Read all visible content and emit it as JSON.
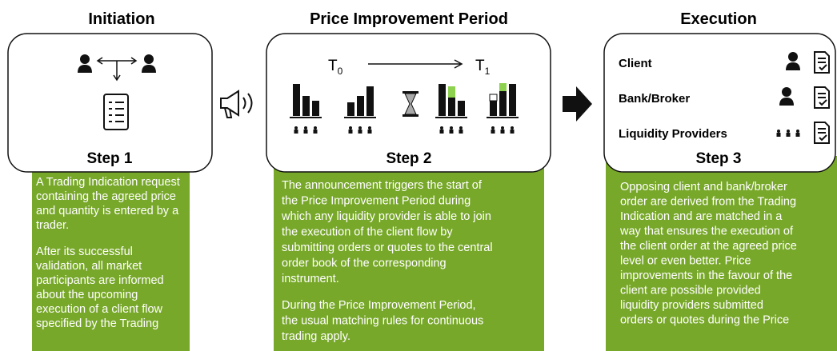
{
  "columns": [
    {
      "heading": "Initiation",
      "step": "Step 1",
      "paragraphs": [
        [
          "A Trading Indication request",
          "containing the agreed price",
          "and quantity is entered by a",
          "trader."
        ],
        [
          "After its successful",
          "validation, all market",
          "participants are informed",
          "about the upcoming",
          "execution of a client flow",
          "specified by the Trading"
        ]
      ]
    },
    {
      "heading": "Price Improvement Period",
      "step": "Step 2",
      "t_start": "T",
      "t_start_sub": "0",
      "t_end": "T",
      "t_end_sub": "1",
      "paragraphs": [
        [
          "The announcement triggers the start of",
          "the Price Improvement Period during",
          "which any liquidity provider is able to join",
          "the execution of the client flow by",
          "submitting orders or quotes to the central",
          "order book of the corresponding",
          "instrument."
        ],
        [
          "During the Price Improvement Period,",
          "the usual matching rules for continuous",
          "trading apply."
        ]
      ]
    },
    {
      "heading": "Execution",
      "step": "Step 3",
      "roles": [
        "Client",
        "Bank/Broker",
        "Liquidity Providers"
      ],
      "paragraphs": [
        [
          "Opposing client and bank/broker",
          "order are derived from the Trading",
          "Indication and are matched in a",
          "way that ensures the execution of",
          "the client order at the agreed price",
          "level or even better. Price",
          "improvements in the favour of the",
          "client are possible provided",
          "liquidity providers submitted",
          "orders or quotes during the Price"
        ]
      ]
    }
  ]
}
